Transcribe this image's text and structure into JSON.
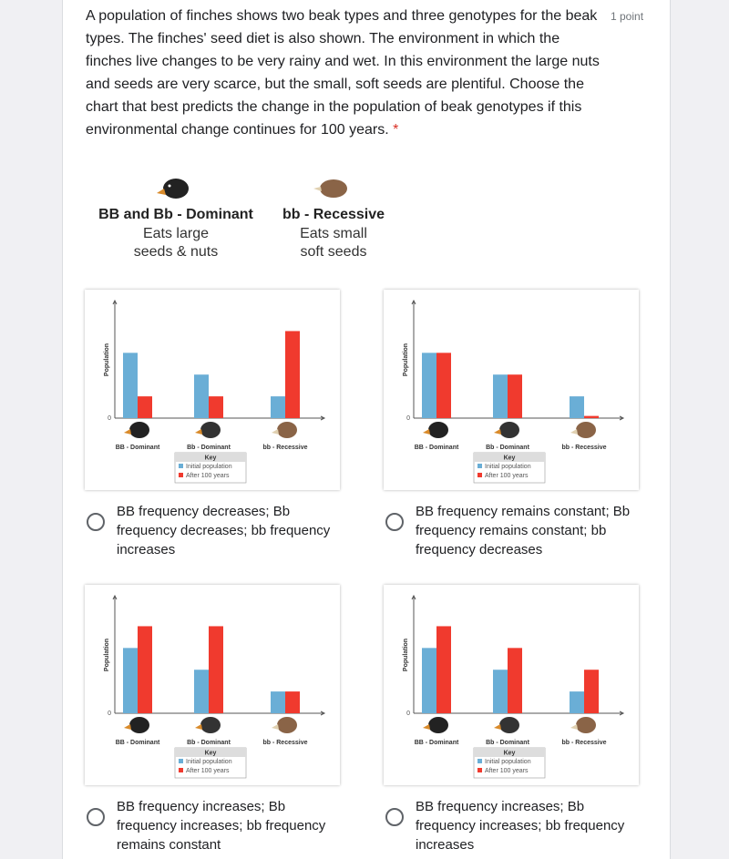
{
  "question": "A population of finches shows two beak types and three genotypes for the beak types. The finches' seed diet is also shown. The environment in which the finches live changes to be very rainy and wet. In this environment the large nuts and seeds are very scarce, but the small, soft seeds are plentiful. Choose the chart that best predicts the change in the population of beak genotypes if this environmental change continues for 100 years.",
  "required_mark": "*",
  "points": "1 point",
  "diet_key": [
    {
      "genotype": "BB and Bb - Dominant",
      "diet": "Eats large",
      "diet2": "seeds & nuts"
    },
    {
      "genotype": "bb - Recessive",
      "diet": "Eats small",
      "diet2": "soft seeds"
    }
  ],
  "chart_data": [
    {
      "type": "bar",
      "y_label": "Population",
      "ylim": [
        0,
        5.4
      ],
      "yticks": [
        0
      ],
      "legend_title": "Key",
      "categories": [
        "BB - Dominant",
        "Bb - Dominant",
        "bb - Recessive"
      ],
      "series": [
        {
          "name": "Initial population",
          "color": "#6aaed6",
          "values": [
            3,
            2,
            1
          ]
        },
        {
          "name": "After 100 years",
          "color": "#f03a2e",
          "values": [
            1,
            1,
            4
          ]
        }
      ]
    },
    {
      "type": "bar",
      "y_label": "Population",
      "ylim": [
        0,
        5.4
      ],
      "yticks": [
        0
      ],
      "legend_title": "Key",
      "categories": [
        "BB - Dominant",
        "Bb - Dominant",
        "bb - Recessive"
      ],
      "series": [
        {
          "name": "Initial population",
          "color": "#6aaed6",
          "values": [
            3,
            2,
            1
          ]
        },
        {
          "name": "After 100 years",
          "color": "#f03a2e",
          "values": [
            3,
            2,
            0.1
          ]
        }
      ]
    },
    {
      "type": "bar",
      "y_label": "Population",
      "ylim": [
        0,
        5.4
      ],
      "yticks": [
        0
      ],
      "legend_title": "Key",
      "categories": [
        "BB - Dominant",
        "Bb - Dominant",
        "bb - Recessive"
      ],
      "series": [
        {
          "name": "Initial population",
          "color": "#6aaed6",
          "values": [
            3,
            2,
            1
          ]
        },
        {
          "name": "After 100 years",
          "color": "#f03a2e",
          "values": [
            4,
            4,
            1
          ]
        }
      ]
    },
    {
      "type": "bar",
      "y_label": "Population",
      "ylim": [
        0,
        5.4
      ],
      "yticks": [
        0
      ],
      "legend_title": "Key",
      "categories": [
        "BB - Dominant",
        "Bb - Dominant",
        "bb - Recessive"
      ],
      "series": [
        {
          "name": "Initial population",
          "color": "#6aaed6",
          "values": [
            3,
            2,
            1
          ]
        },
        {
          "name": "After 100 years",
          "color": "#f03a2e",
          "values": [
            4,
            3,
            2
          ]
        }
      ]
    }
  ],
  "options": [
    "BB frequency decreases; Bb frequency decreases; bb frequency increases",
    "BB frequency remains constant; Bb frequency remains constant; bb frequency decreases",
    "BB frequency increases; Bb frequency increases; bb frequency remains constant",
    "BB frequency increases; Bb frequency increases; bb frequency increases"
  ]
}
